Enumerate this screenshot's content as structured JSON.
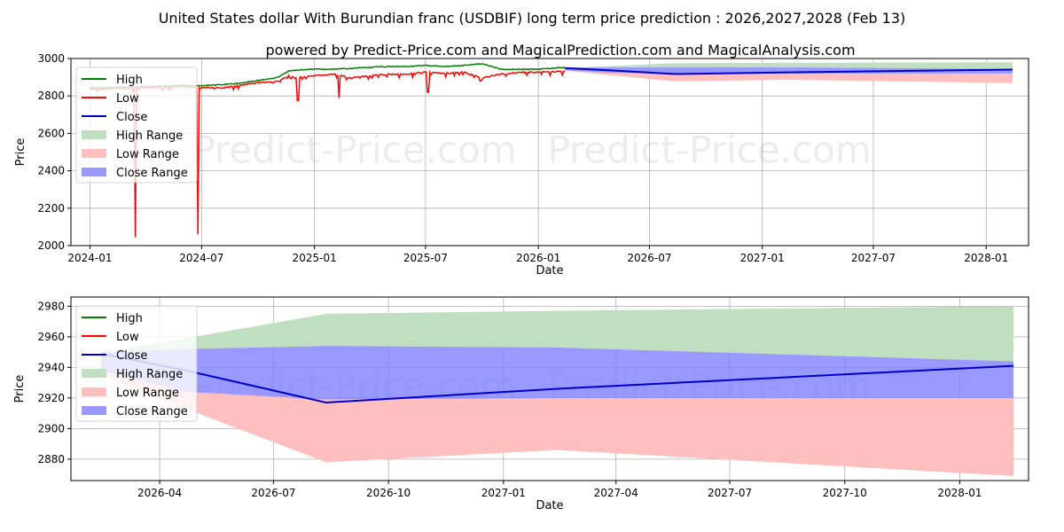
{
  "title": "United States dollar With Burundian franc (USDBIF) long term price prediction : 2026,2027,2028 (Feb 13)",
  "subtitle": "powered by Predict-Price.com and MagicalPrediction.com and MagicalAnalysis.com",
  "watermark": "Predict-Price.com",
  "colors": {
    "high": "#008000",
    "low": "#ff0000",
    "close": "#0000cc",
    "high_range": "#c0dfc0",
    "low_range": "#ffbfbf",
    "close_range": "#7f7fff"
  },
  "chart_data": [
    {
      "type": "line",
      "xlabel": "Date",
      "ylabel": "Price",
      "ylim": [
        2000,
        3000
      ],
      "xlim": [
        "2023-12-01",
        "2028-03-10"
      ],
      "grid": true,
      "legend_position": "top-left",
      "legend": [
        "High",
        "Low",
        "Close",
        "High Range",
        "Low Range",
        "Close Range"
      ],
      "xticks": [
        "2024-01",
        "2024-07",
        "2025-01",
        "2025-07",
        "2026-01",
        "2026-07",
        "2027-01",
        "2027-07",
        "2028-01"
      ],
      "yticks": [
        2000,
        2200,
        2400,
        2600,
        2800,
        3000
      ],
      "history": {
        "dates": [
          "2024-01-01",
          "2024-02-01",
          "2024-03-01",
          "2024-04-01",
          "2024-05-01",
          "2024-06-01",
          "2024-07-01",
          "2024-08-01",
          "2024-09-01",
          "2024-10-01",
          "2024-11-01",
          "2024-11-20",
          "2024-12-01",
          "2025-01-01",
          "2025-02-01",
          "2025-03-01",
          "2025-04-01",
          "2025-05-01",
          "2025-06-01",
          "2025-07-01",
          "2025-08-01",
          "2025-09-01",
          "2025-10-01",
          "2025-11-01",
          "2025-12-01",
          "2026-01-01",
          "2026-02-13"
        ],
        "high": [
          2845,
          2847,
          2850,
          2852,
          2855,
          2858,
          2858,
          2862,
          2870,
          2885,
          2900,
          2935,
          2940,
          2945,
          2945,
          2950,
          2955,
          2960,
          2960,
          2965,
          2960,
          2965,
          2975,
          2945,
          2945,
          2945,
          2955
        ],
        "low": [
          2840,
          2842,
          2845,
          2847,
          2850,
          2853,
          2850,
          2845,
          2860,
          2875,
          2880,
          2910,
          2900,
          2910,
          2920,
          2900,
          2910,
          2920,
          2920,
          2930,
          2925,
          2930,
          2900,
          2920,
          2930,
          2930,
          2935
        ],
        "low_spikes": [
          {
            "date": "2024-03-15",
            "value": 2045
          },
          {
            "date": "2024-06-25",
            "value": 2060
          },
          {
            "date": "2024-12-05",
            "value": 2775
          },
          {
            "date": "2025-02-10",
            "value": 2790
          },
          {
            "date": "2025-07-05",
            "value": 2820
          }
        ]
      }
    },
    {
      "type": "area",
      "xlabel": "Date",
      "ylabel": "Price",
      "ylim": [
        2866,
        2986
      ],
      "xlim": [
        "2026-01-20",
        "2028-02-25"
      ],
      "grid": true,
      "legend_position": "top-left",
      "legend": [
        "High",
        "Low",
        "Close",
        "High Range",
        "Low Range",
        "Close Range"
      ],
      "xticks": [
        "2026-04",
        "2026-07",
        "2026-10",
        "2027-01",
        "2027-04",
        "2027-07",
        "2027-10",
        "2028-01"
      ],
      "yticks": [
        2880,
        2900,
        2920,
        2940,
        2960,
        2980
      ]
    }
  ],
  "forecast": {
    "dates": [
      "2026-02-13",
      "2026-04-22",
      "2026-08-12",
      "2027-02-13",
      "2028-02-13"
    ],
    "close": [
      2949,
      2938,
      2917,
      2926,
      2941
    ],
    "high_range": [
      [
        2950,
        2950
      ],
      [
        2952,
        2959
      ],
      [
        2954,
        2975
      ],
      [
        2953,
        2977
      ],
      [
        2944,
        2980
      ]
    ],
    "close_range": [
      [
        2938,
        2950
      ],
      [
        2924,
        2952
      ],
      [
        2919,
        2954
      ],
      [
        2920,
        2953
      ],
      [
        2920,
        2944
      ]
    ],
    "low_range": [
      [
        2935,
        2940
      ],
      [
        2913,
        2924
      ],
      [
        2878,
        2919
      ],
      [
        2886,
        2920
      ],
      [
        2869,
        2920
      ]
    ]
  }
}
